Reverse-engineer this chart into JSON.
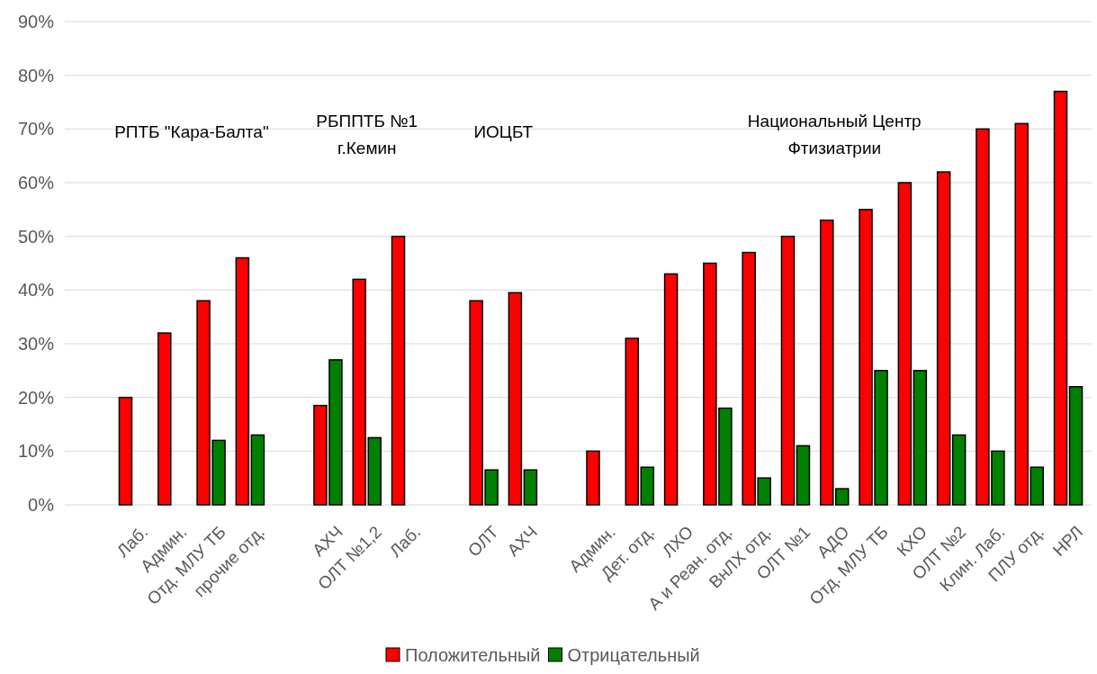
{
  "chart_data": {
    "type": "bar",
    "categories": [
      "Лаб.",
      "Админ.",
      "Отд. МЛУ ТБ",
      "прочие отд.",
      null,
      "АХЧ",
      "ОЛТ №1,2",
      "Лаб.",
      null,
      "ОЛТ",
      "АХЧ",
      null,
      "Админ.",
      "Дет. отд.",
      "ЛХО",
      "А и Реан. отд.",
      "ВнЛХ отд.",
      "ОЛТ №1",
      "АДО",
      "Отд. МЛУ ТБ",
      "КХО",
      "ОЛТ №2",
      "Клин. Лаб.",
      "ПЛУ отд.",
      "НРЛ"
    ],
    "series": [
      {
        "name": "Положительный",
        "color": "#ff0000",
        "values": [
          20,
          32,
          38,
          46,
          null,
          18.5,
          42,
          50,
          null,
          38,
          39.5,
          null,
          10,
          31,
          43,
          45,
          47,
          50,
          53,
          55,
          60,
          62,
          70,
          71,
          77
        ]
      },
      {
        "name": "Отрицательный",
        "color": "#008000",
        "values": [
          0,
          0,
          12,
          13,
          null,
          27,
          12.5,
          0,
          null,
          6.5,
          6.5,
          null,
          0,
          7,
          0,
          18,
          5,
          11,
          3,
          25,
          25,
          13,
          10,
          7,
          22
        ]
      }
    ],
    "annotations": [
      "РПТБ \"Кара-Балта\"",
      "РБППТБ №1\nг.Кемин",
      "ИОЦБТ",
      "Национальный Центр\nФтизиатрии"
    ],
    "ylim": [
      0,
      90
    ],
    "yticks": [
      {
        "value": 0,
        "label": "0%"
      },
      {
        "value": 10,
        "label": "10%"
      },
      {
        "value": 20,
        "label": "20%"
      },
      {
        "value": 30,
        "label": "30%"
      },
      {
        "value": 40,
        "label": "40%"
      },
      {
        "value": 50,
        "label": "50%"
      },
      {
        "value": 60,
        "label": "60%"
      },
      {
        "value": 70,
        "label": "70%"
      },
      {
        "value": 80,
        "label": "80%"
      },
      {
        "value": 90,
        "label": "90%"
      }
    ],
    "grid": "y",
    "legend": "bottom"
  }
}
